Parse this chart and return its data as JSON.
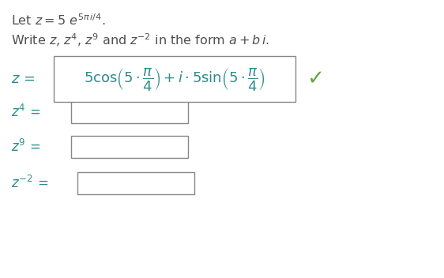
{
  "bg_color": "#ffffff",
  "text_color": "#505050",
  "teal_color": "#2e8b8b",
  "green_check_color": "#5aaa3a",
  "font_size_title": 11.5,
  "font_size_formula": 13,
  "font_size_labels": 12
}
